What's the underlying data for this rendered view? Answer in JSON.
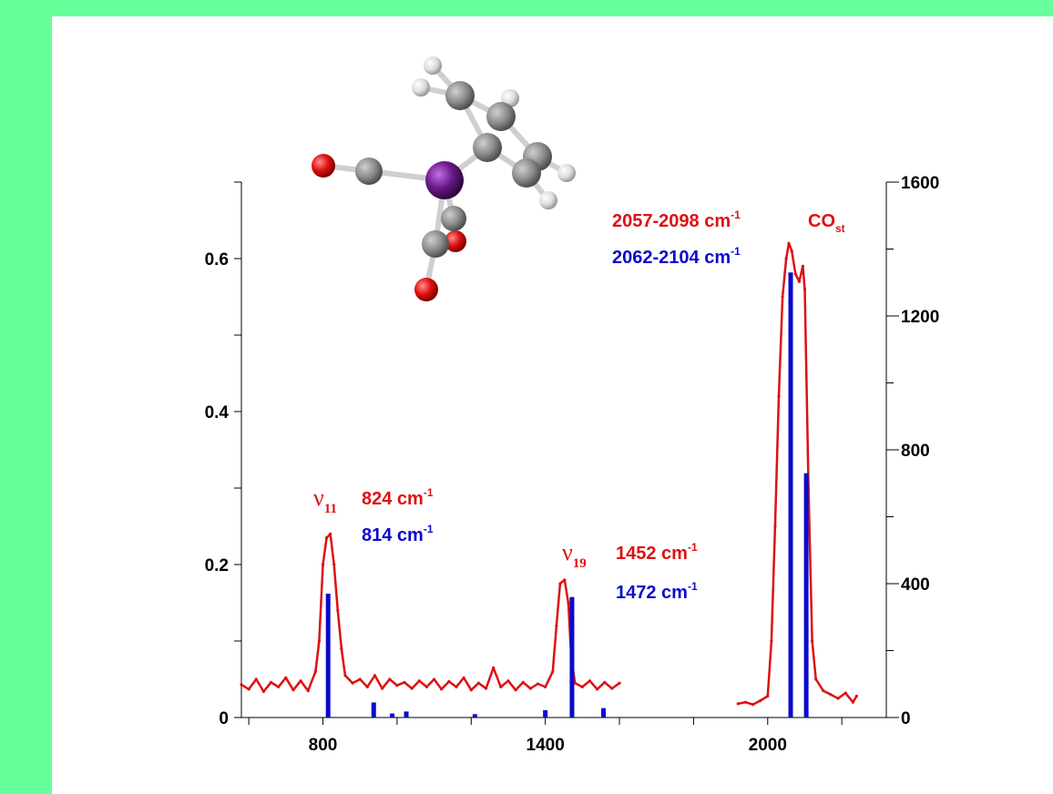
{
  "chart_data": {
    "type": "line",
    "title": "",
    "xlabel": "",
    "ylabel": "",
    "xlim": [
      580,
      2320
    ],
    "x_ticks": [
      800,
      1400,
      2000
    ],
    "x_minor_ticks": [
      600,
      1000,
      1200,
      1600,
      1800,
      2200
    ],
    "y_left": {
      "ylim": [
        0,
        0.7
      ],
      "ticks": [
        0,
        0.2,
        0.4,
        0.6
      ],
      "tick_labels": [
        "0",
        "0.2",
        "0.4",
        "0.6"
      ]
    },
    "y_right": {
      "ylim": [
        0,
        1600
      ],
      "ticks": [
        0,
        400,
        800,
        1200,
        1600
      ],
      "tick_labels": [
        "0",
        "400",
        "800",
        "1200",
        "1600"
      ]
    },
    "series": [
      {
        "kind": "experimental-line",
        "axis": "left",
        "color": "#dd1111",
        "segments": [
          [
            [
              580,
              0.043
            ],
            [
              600,
              0.037
            ],
            [
              620,
              0.05
            ],
            [
              640,
              0.034
            ],
            [
              660,
              0.046
            ],
            [
              680,
              0.04
            ],
            [
              700,
              0.052
            ],
            [
              720,
              0.036
            ],
            [
              740,
              0.048
            ],
            [
              760,
              0.035
            ],
            [
              780,
              0.06
            ],
            [
              790,
              0.1
            ],
            [
              800,
              0.2
            ],
            [
              810,
              0.235
            ],
            [
              820,
              0.24
            ],
            [
              830,
              0.2
            ],
            [
              840,
              0.14
            ],
            [
              850,
              0.09
            ],
            [
              860,
              0.055
            ],
            [
              880,
              0.045
            ],
            [
              900,
              0.05
            ],
            [
              920,
              0.04
            ],
            [
              940,
              0.055
            ],
            [
              960,
              0.038
            ],
            [
              980,
              0.05
            ],
            [
              1000,
              0.042
            ],
            [
              1020,
              0.046
            ],
            [
              1040,
              0.038
            ],
            [
              1060,
              0.048
            ],
            [
              1080,
              0.04
            ],
            [
              1100,
              0.05
            ],
            [
              1120,
              0.037
            ],
            [
              1140,
              0.047
            ],
            [
              1160,
              0.04
            ],
            [
              1180,
              0.052
            ],
            [
              1200,
              0.036
            ],
            [
              1220,
              0.045
            ],
            [
              1240,
              0.038
            ],
            [
              1260,
              0.065
            ],
            [
              1280,
              0.04
            ],
            [
              1300,
              0.048
            ],
            [
              1320,
              0.036
            ],
            [
              1340,
              0.046
            ],
            [
              1360,
              0.038
            ],
            [
              1380,
              0.044
            ],
            [
              1400,
              0.04
            ],
            [
              1420,
              0.06
            ],
            [
              1430,
              0.12
            ],
            [
              1440,
              0.175
            ],
            [
              1452,
              0.18
            ],
            [
              1462,
              0.15
            ],
            [
              1470,
              0.08
            ],
            [
              1480,
              0.045
            ],
            [
              1500,
              0.04
            ],
            [
              1520,
              0.048
            ],
            [
              1540,
              0.037
            ],
            [
              1560,
              0.046
            ],
            [
              1580,
              0.038
            ],
            [
              1600,
              0.045
            ]
          ],
          [
            [
              1920,
              0.018
            ],
            [
              1940,
              0.02
            ],
            [
              1960,
              0.017
            ],
            [
              1980,
              0.022
            ],
            [
              2000,
              0.028
            ],
            [
              2010,
              0.1
            ],
            [
              2020,
              0.25
            ],
            [
              2030,
              0.42
            ],
            [
              2040,
              0.55
            ],
            [
              2050,
              0.6
            ],
            [
              2057,
              0.62
            ],
            [
              2065,
              0.61
            ],
            [
              2075,
              0.58
            ],
            [
              2085,
              0.57
            ],
            [
              2095,
              0.59
            ],
            [
              2100,
              0.56
            ],
            [
              2110,
              0.3
            ],
            [
              2120,
              0.1
            ],
            [
              2130,
              0.05
            ],
            [
              2150,
              0.035
            ],
            [
              2170,
              0.03
            ],
            [
              2190,
              0.025
            ],
            [
              2210,
              0.032
            ],
            [
              2230,
              0.02
            ],
            [
              2240,
              0.028
            ]
          ]
        ]
      },
      {
        "kind": "calculated-sticks",
        "axis": "right",
        "color": "#0a0acc",
        "x": [
          814,
          937,
          987,
          1025,
          1210,
          1400,
          1472,
          1557,
          2062,
          2104
        ],
        "values": [
          370,
          45,
          12,
          18,
          10,
          22,
          360,
          28,
          1330,
          730
        ]
      }
    ]
  },
  "annotations": {
    "band_nu11": {
      "symbol": "ν",
      "subscript": "11",
      "exp": "824 cm",
      "exp_sup": "-1",
      "calc": "814 cm",
      "calc_sup": "-1"
    },
    "band_nu19": {
      "symbol": "ν",
      "subscript": "19",
      "exp": "1452 cm",
      "exp_sup": "-1",
      "calc": "1472 cm",
      "calc_sup": "-1"
    },
    "band_co": {
      "exp": "2057-2098 cm",
      "exp_sup": "-1",
      "label": "CO",
      "label_sub": "st",
      "calc": "2062-2104 cm",
      "calc_sup": "-1"
    }
  },
  "molecule": {
    "atoms": [
      {
        "element": "I",
        "color": "#6a1a8a"
      },
      {
        "element": "C",
        "color": "#8a8a8a"
      },
      {
        "element": "O",
        "color": "#e01010"
      },
      {
        "element": "H",
        "color": "#dddddd"
      }
    ]
  }
}
